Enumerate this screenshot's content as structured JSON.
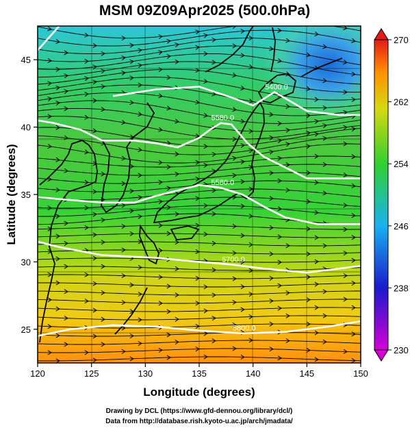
{
  "chart_data": {
    "type": "heatmap",
    "title": "MSM 09Z09Apr2025 (500.0hPa)",
    "xlabel": "Longitude (degrees)",
    "ylabel": "Latitude  (degrees)",
    "xlim": [
      120,
      150
    ],
    "ylim": [
      22.5,
      47.5
    ],
    "xticks": [
      "120",
      "125",
      "130",
      "135",
      "140",
      "145",
      "150"
    ],
    "yticks": [
      "25",
      "30",
      "35",
      "40",
      "45"
    ],
    "colorbar": {
      "min": 230,
      "max": 270,
      "ticks": [
        "230",
        "238",
        "246",
        "254",
        "262",
        "270"
      ],
      "colors": [
        "#d600d6",
        "#1a1acc",
        "#19b2f0",
        "#30d030",
        "#d8d810",
        "#ff8c00",
        "#e41a1a"
      ]
    },
    "contours": [
      {
        "label": "5400.0",
        "points": [
          [
            127,
            42.3
          ],
          [
            131,
            42.8
          ],
          [
            135,
            43.0
          ],
          [
            138,
            42.2
          ],
          [
            140,
            41.6
          ],
          [
            142,
            42.6
          ],
          [
            145,
            41.2
          ],
          [
            148,
            40.9
          ],
          [
            150,
            40.9
          ]
        ]
      },
      {
        "label": "5580.0",
        "points": [
          [
            120,
            45.7
          ],
          [
            122,
            47.5
          ]
        ]
      },
      {
        "label": "5580.0",
        "points": [
          [
            120,
            40.5
          ],
          [
            121.5,
            40.3
          ],
          [
            122,
            40.2
          ],
          [
            124,
            39.8
          ],
          [
            126,
            39.0
          ],
          [
            129,
            39.0
          ],
          [
            131,
            38.8
          ],
          [
            133,
            38.5
          ],
          [
            135,
            39.2
          ],
          [
            136,
            39.8
          ],
          [
            137,
            40.3
          ],
          [
            138,
            40.2
          ],
          [
            139.5,
            38.8
          ],
          [
            141,
            37.8
          ],
          [
            143,
            37.0
          ],
          [
            145,
            36.2
          ],
          [
            150,
            36.2
          ]
        ]
      },
      {
        "label": "5580.0",
        "points": [
          [
            120,
            34.8
          ],
          [
            123,
            34.6
          ],
          [
            126,
            34.4
          ],
          [
            129,
            34.4
          ],
          [
            131,
            34.9
          ],
          [
            133,
            35.3
          ],
          [
            135,
            35.7
          ],
          [
            137,
            35.5
          ],
          [
            139,
            35.0
          ],
          [
            141,
            34.1
          ],
          [
            143,
            33.3
          ],
          [
            146,
            32.8
          ],
          [
            150,
            32.8
          ]
        ]
      },
      {
        "label": "5700.0",
        "points": [
          [
            120,
            31.5
          ],
          [
            122,
            31.1
          ],
          [
            126,
            30.5
          ],
          [
            131,
            30.3
          ],
          [
            135,
            30.0
          ],
          [
            138,
            29.8
          ],
          [
            141,
            29.5
          ],
          [
            145,
            29.2
          ],
          [
            150,
            29.7
          ]
        ]
      },
      {
        "label": "5800.0",
        "points": [
          [
            120,
            24.5
          ],
          [
            123,
            25.0
          ],
          [
            127,
            25.3
          ],
          [
            131,
            25.2
          ],
          [
            135,
            24.9
          ],
          [
            139,
            24.7
          ],
          [
            143,
            24.8
          ],
          [
            147,
            25.2
          ],
          [
            150,
            25.6
          ]
        ]
      }
    ],
    "wind": {
      "description": "streamlines, predominantly westerly",
      "flow_direction": "west-to-east"
    }
  },
  "credits": {
    "line1": "Drawing by DCL (https://www.gfd-dennou.org/library/dcl/)",
    "line2": "Data from http://database.rish.kyoto-u.ac.jp/arch/jmadata/"
  }
}
